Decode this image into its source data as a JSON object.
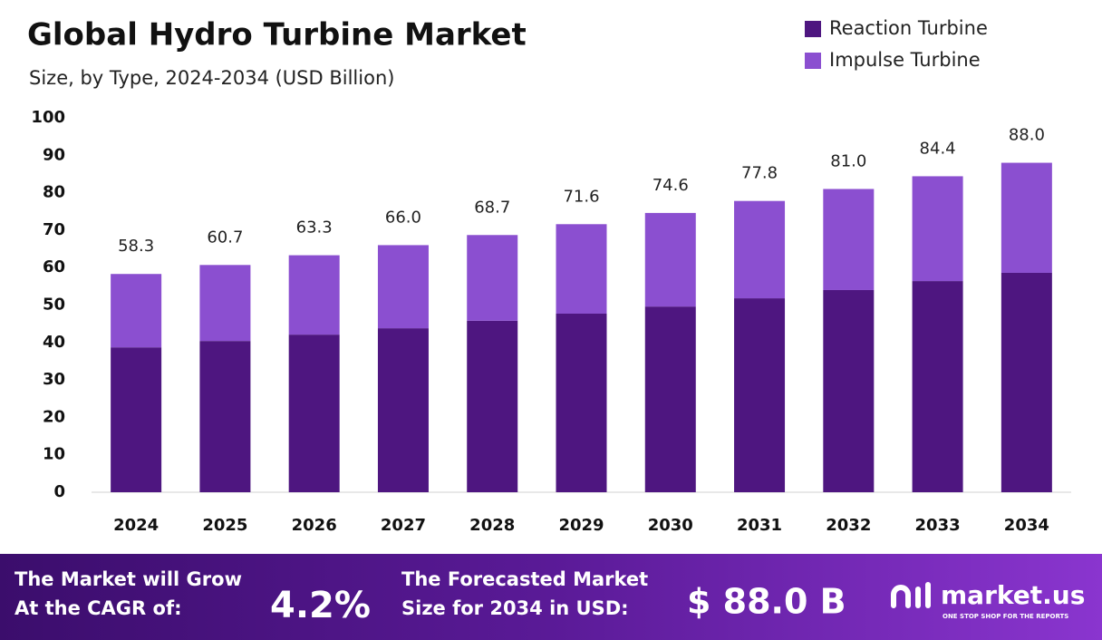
{
  "chart_data": {
    "type": "stacked-bar",
    "title": "Global Hydro Turbine Market",
    "subtitle": "Size, by Type, 2024-2034 (USD Billion)",
    "categories": [
      "2024",
      "2025",
      "2026",
      "2027",
      "2028",
      "2029",
      "2030",
      "2031",
      "2032",
      "2033",
      "2034"
    ],
    "series": [
      {
        "name": "Reaction Turbine",
        "color": "#4e1680",
        "values": [
          38.7,
          40.4,
          42.1,
          43.8,
          45.8,
          47.7,
          49.6,
          51.8,
          54.0,
          56.4,
          58.6
        ]
      },
      {
        "name": "Impulse Turbine",
        "color": "#8b4fd0",
        "values": [
          19.6,
          20.3,
          21.2,
          22.2,
          22.9,
          23.9,
          25.0,
          26.0,
          27.0,
          28.0,
          29.4
        ]
      }
    ],
    "totals": [
      58.3,
      60.7,
      63.3,
      66.0,
      68.7,
      71.6,
      74.6,
      77.8,
      81.0,
      84.4,
      88.0
    ],
    "total_labels": [
      "58.3",
      "60.7",
      "63.3",
      "66.0",
      "68.7",
      "71.6",
      "74.6",
      "77.8",
      "81.0",
      "84.4",
      "88.0"
    ],
    "ylim": [
      0,
      100
    ],
    "yticks": [
      0,
      10,
      20,
      30,
      40,
      50,
      60,
      70,
      80,
      90,
      100
    ],
    "legend": "top-right"
  },
  "footer": {
    "cagr_text": [
      "The Market will Grow",
      "At the CAGR of:"
    ],
    "cagr_value": "4.2%",
    "forecast_text": [
      "The Forecasted Market",
      "Size for 2034 in USD:"
    ],
    "forecast_value": "$ 88.0 B",
    "brand": "market.us",
    "tagline": "ONE STOP SHOP FOR THE REPORTS"
  }
}
